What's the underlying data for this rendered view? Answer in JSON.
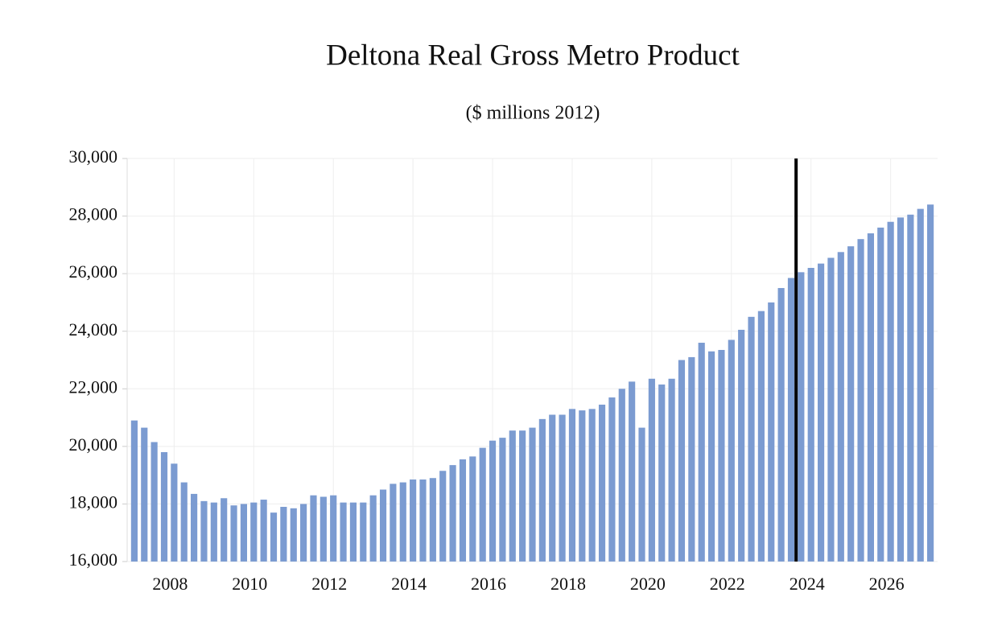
{
  "chart_data": {
    "type": "bar",
    "title": "Deltona Real Gross Metro Product",
    "subtitle": "($ millions 2012)",
    "x": [
      2007,
      2007.25,
      2007.5,
      2007.75,
      2008,
      2008.25,
      2008.5,
      2008.75,
      2009,
      2009.25,
      2009.5,
      2009.75,
      2010,
      2010.25,
      2010.5,
      2010.75,
      2011,
      2011.25,
      2011.5,
      2011.75,
      2012,
      2012.25,
      2012.5,
      2012.75,
      2013,
      2013.25,
      2013.5,
      2013.75,
      2014,
      2014.25,
      2014.5,
      2014.75,
      2015,
      2015.25,
      2015.5,
      2015.75,
      2016,
      2016.25,
      2016.5,
      2016.75,
      2017,
      2017.25,
      2017.5,
      2017.75,
      2018,
      2018.25,
      2018.5,
      2018.75,
      2019,
      2019.25,
      2019.5,
      2019.75,
      2020,
      2020.25,
      2020.5,
      2020.75,
      2021,
      2021.25,
      2021.5,
      2021.75,
      2022,
      2022.25,
      2022.5,
      2022.75,
      2023,
      2023.25,
      2023.5,
      2023.75,
      2024,
      2024.25,
      2024.5,
      2024.75,
      2025,
      2025.25,
      2025.5,
      2025.75,
      2026,
      2026.25,
      2026.5,
      2026.75,
      2027
    ],
    "values": [
      20900,
      20650,
      20150,
      19800,
      19400,
      18750,
      18350,
      18100,
      18050,
      18200,
      17950,
      18000,
      18050,
      18150,
      17700,
      17900,
      17850,
      18000,
      18300,
      18250,
      18300,
      18050,
      18050,
      18050,
      18300,
      18500,
      18700,
      18750,
      18850,
      18850,
      18900,
      19150,
      19350,
      19550,
      19650,
      19950,
      20200,
      20300,
      20550,
      20550,
      20650,
      20950,
      21100,
      21100,
      21300,
      21250,
      21300,
      21450,
      21700,
      22000,
      22250,
      20650,
      22350,
      22150,
      22350,
      23000,
      23100,
      23600,
      23300,
      23350,
      23700,
      24050,
      24500,
      24700,
      25000,
      25500,
      25850,
      26050,
      26200,
      26350,
      26550,
      26750,
      26950,
      27200,
      27400,
      27600,
      27800,
      27950,
      28050,
      28250,
      28400
    ],
    "color": "#7b9bd1",
    "vline": 2023.625,
    "vline_color": "#000000",
    "xlim": [
      2006.82,
      2027.18
    ],
    "xticks": [
      2008,
      2010,
      2012,
      2014,
      2016,
      2018,
      2020,
      2022,
      2024,
      2026
    ],
    "ylim": [
      16000,
      30000
    ],
    "yticks": [
      {
        "value": 16000,
        "label": "16,000"
      },
      {
        "value": 18000,
        "label": "18,000"
      },
      {
        "value": 20000,
        "label": "20,000"
      },
      {
        "value": 22000,
        "label": "22,000"
      },
      {
        "value": 24000,
        "label": "24,000"
      },
      {
        "value": 26000,
        "label": "26,000"
      },
      {
        "value": 28000,
        "label": "28,000"
      },
      {
        "value": 30000,
        "label": "30,000"
      }
    ],
    "grid": true
  }
}
